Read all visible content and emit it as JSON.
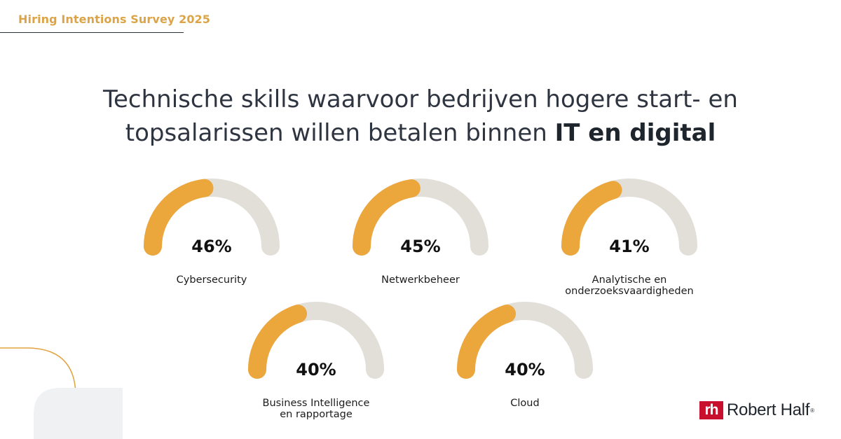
{
  "header": {
    "survey_title": "Hiring Intentions Survey 2025"
  },
  "headline": {
    "line1": "Technische skills waarvoor bedrijven hogere start- en",
    "line2_regular": "topsalarissen willen betalen binnen ",
    "line2_bold": "IT en digital"
  },
  "colors": {
    "accent": "#EBA63C",
    "track": "#E2DED8",
    "header_text": "#DCA446",
    "decor_line": "#E0A33E",
    "brand_red": "#C8102E"
  },
  "chart_data": {
    "type": "gauge",
    "title": "Technische skills waarvoor bedrijven hogere start- en topsalarissen willen betalen binnen IT en digital",
    "value_unit": "%",
    "scale": [
      0,
      100
    ],
    "items": [
      {
        "label_lines": [
          "Cybersecurity"
        ],
        "value": 46,
        "display": "46%"
      },
      {
        "label_lines": [
          "Netwerkbeheer"
        ],
        "value": 45,
        "display": "45%"
      },
      {
        "label_lines": [
          "Analytische en",
          "onderzoeksvaardigheden"
        ],
        "value": 41,
        "display": "41%"
      },
      {
        "label_lines": [
          "Business Intelligence",
          "en rapportage"
        ],
        "value": 40,
        "display": "40%"
      },
      {
        "label_lines": [
          "Cloud"
        ],
        "value": 40,
        "display": "40%"
      }
    ]
  },
  "brand": {
    "mark": "rh",
    "name": "Robert Half",
    "registered": "®"
  }
}
